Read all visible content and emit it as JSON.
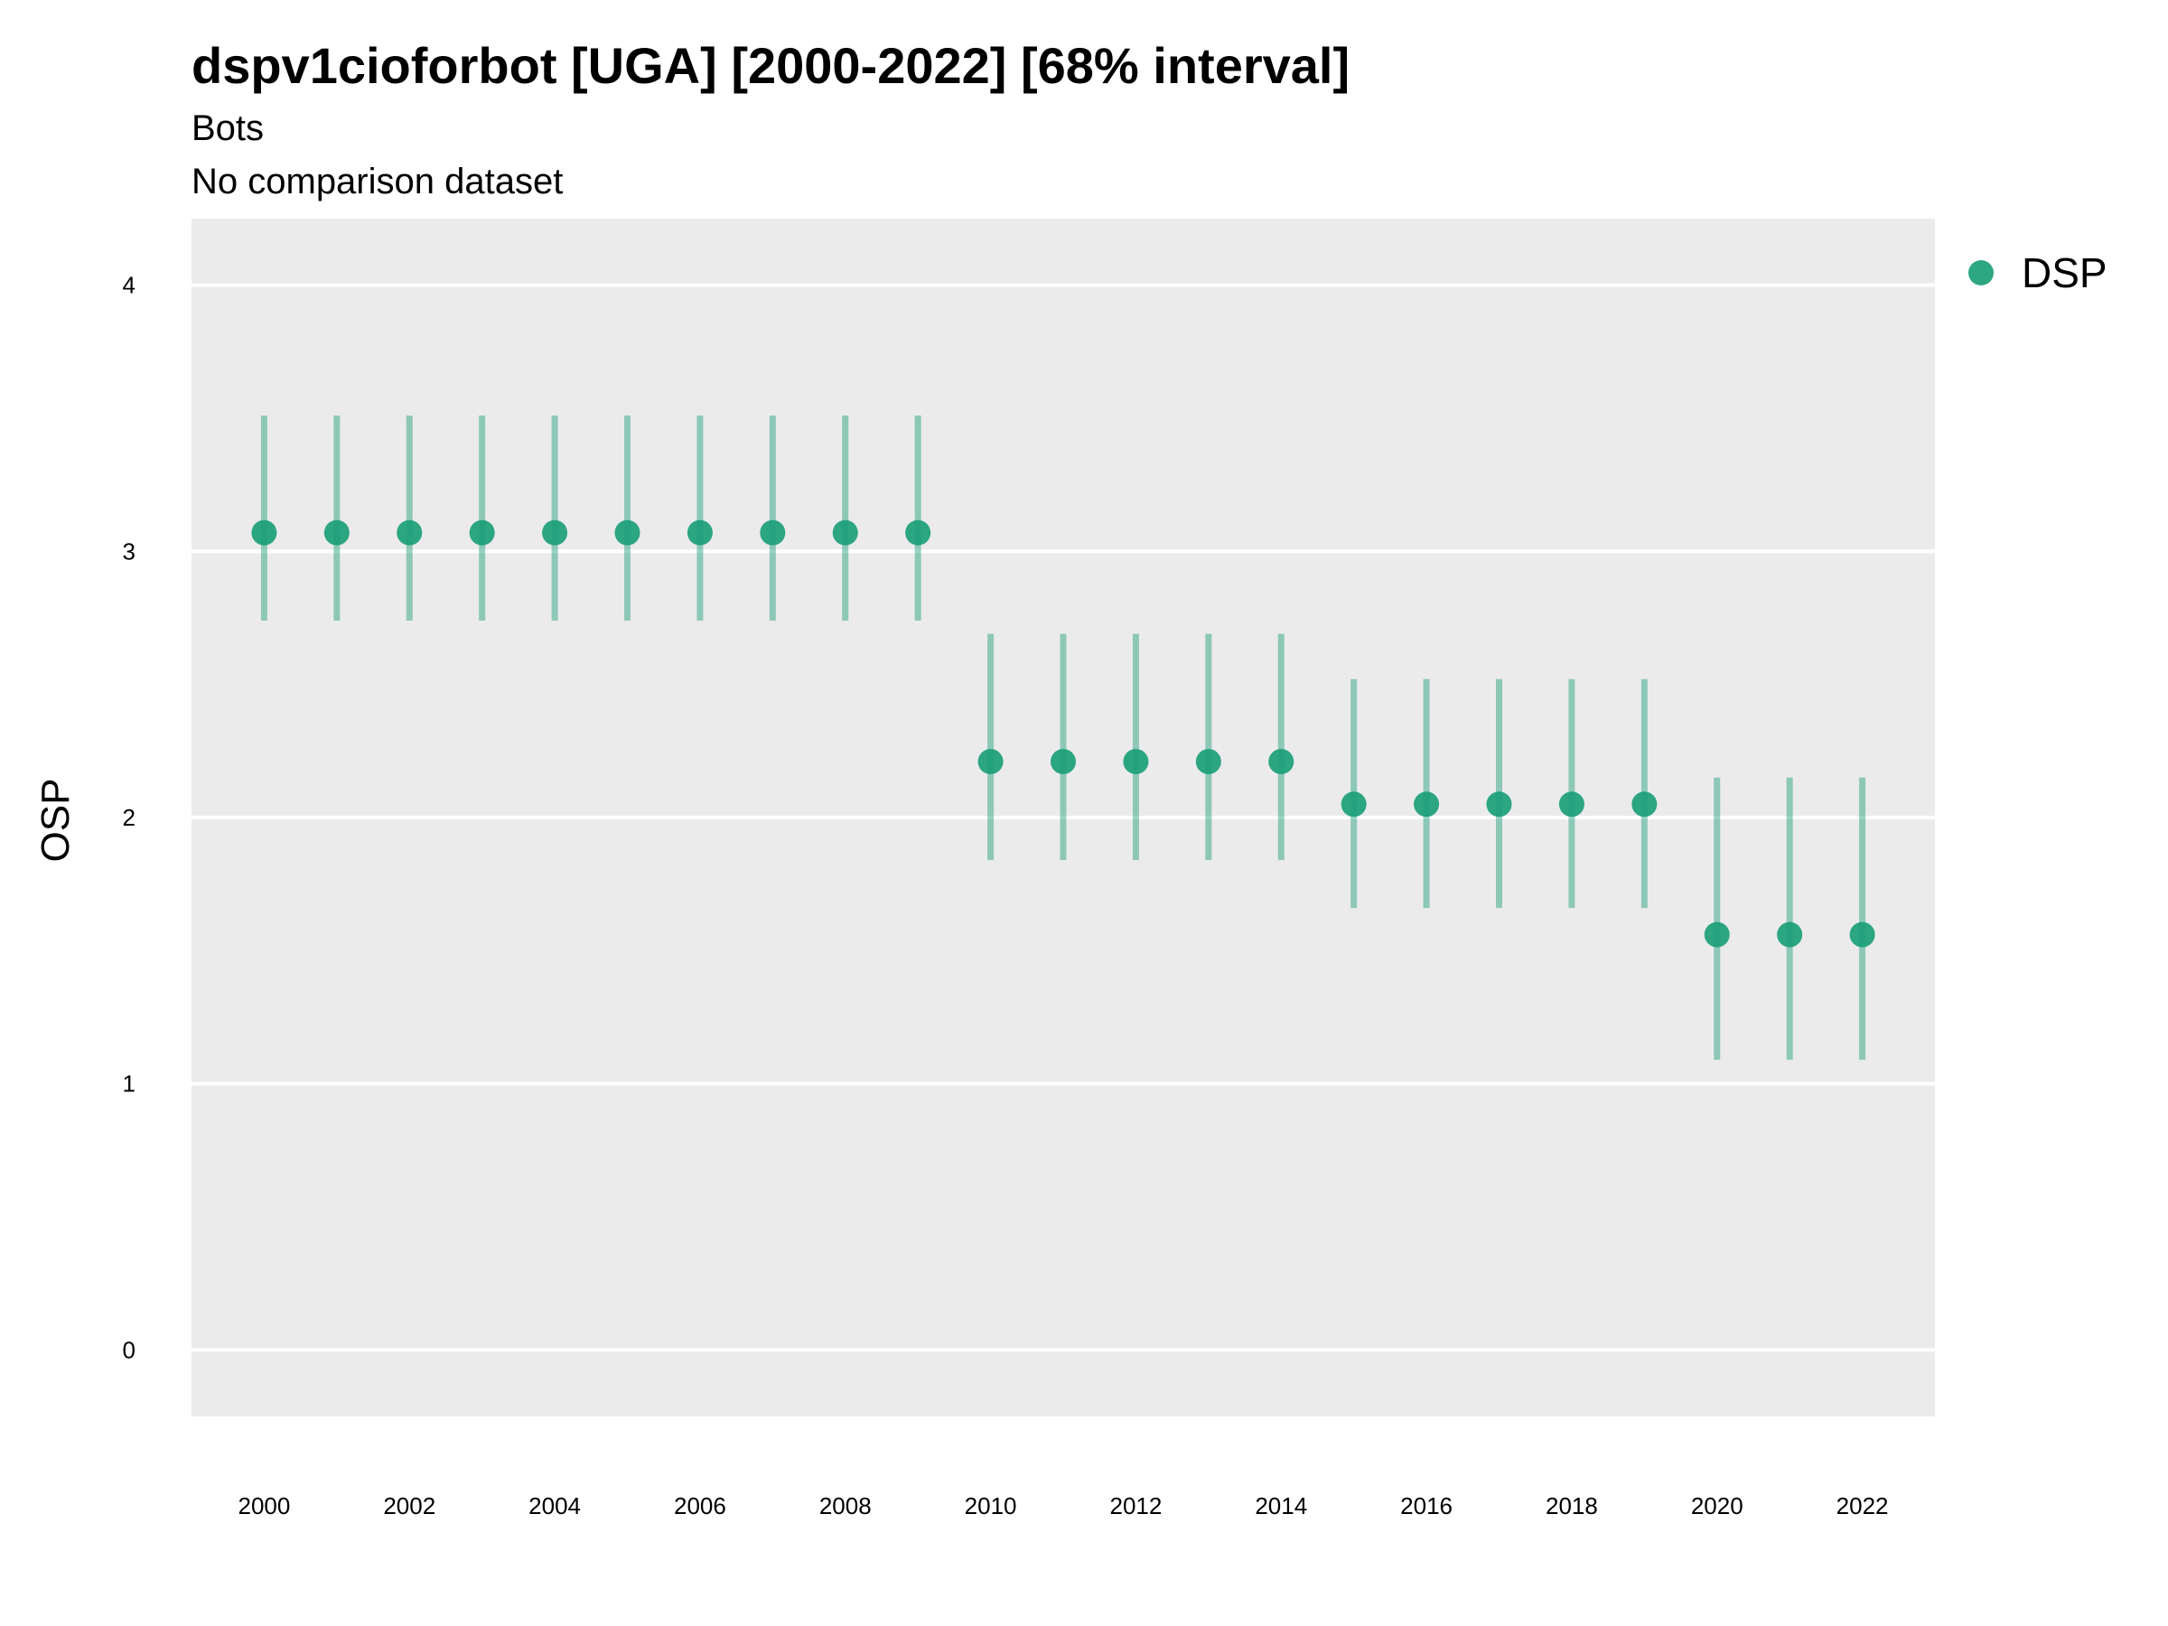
{
  "chart_data": {
    "type": "scatter",
    "title": "dspv1cioforbot [UGA] [2000-2022] [68% interval]",
    "subtitle": "Bots",
    "subtitle2": "No comparison dataset",
    "xlabel": "",
    "ylabel": "OSP",
    "ylim": [
      -0.25,
      4.25
    ],
    "xlim": [
      1999,
      2023
    ],
    "yticks": [
      "0",
      "1",
      "2",
      "3",
      "4"
    ],
    "xticks": [
      "2000",
      "2002",
      "2004",
      "2006",
      "2008",
      "2010",
      "2012",
      "2014",
      "2016",
      "2018",
      "2020",
      "2022"
    ],
    "grid": true,
    "legend_position": "right",
    "colors": {
      "point": "#1b9e77",
      "panel": "#ebebeb",
      "grid": "#ffffff"
    },
    "series": [
      {
        "name": "DSP",
        "x": [
          2000,
          2001,
          2002,
          2003,
          2004,
          2005,
          2006,
          2007,
          2008,
          2009,
          2010,
          2011,
          2012,
          2013,
          2014,
          2015,
          2016,
          2017,
          2018,
          2019,
          2020,
          2021,
          2022
        ],
        "y": [
          3.07,
          3.07,
          3.07,
          3.07,
          3.07,
          3.07,
          3.07,
          3.07,
          3.07,
          3.07,
          2.21,
          2.21,
          2.21,
          2.21,
          2.21,
          2.05,
          2.05,
          2.05,
          2.05,
          2.05,
          1.56,
          1.56,
          1.56
        ],
        "lower": [
          2.74,
          2.74,
          2.74,
          2.74,
          2.74,
          2.74,
          2.74,
          2.74,
          2.74,
          2.74,
          1.84,
          1.84,
          1.84,
          1.84,
          1.84,
          1.66,
          1.66,
          1.66,
          1.66,
          1.66,
          1.09,
          1.09,
          1.09
        ],
        "upper": [
          3.51,
          3.51,
          3.51,
          3.51,
          3.51,
          3.51,
          3.51,
          3.51,
          3.51,
          3.51,
          2.69,
          2.69,
          2.69,
          2.69,
          2.69,
          2.52,
          2.52,
          2.52,
          2.52,
          2.52,
          2.15,
          2.15,
          2.15
        ]
      }
    ]
  }
}
